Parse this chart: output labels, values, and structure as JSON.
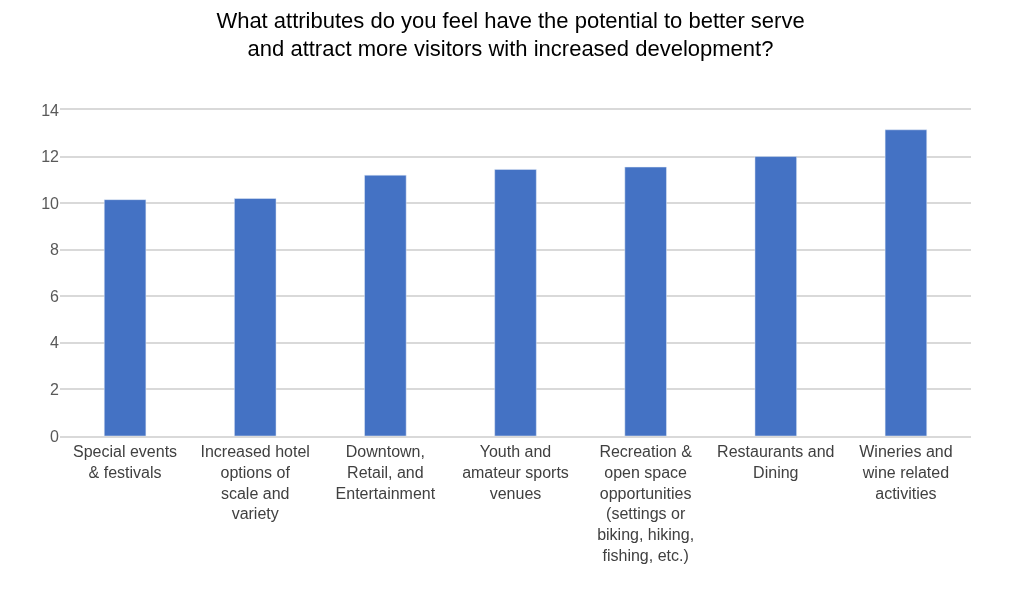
{
  "chart_data": {
    "type": "bar",
    "title": "What attributes do you feel have the potential to better serve and attract more visitors with increased development?",
    "categories": [
      "Special events & festivals",
      "Increased hotel options of scale and variety",
      "Downtown, Retail, and Entertainment",
      "Youth and amateur sports venues",
      "Recreation & open space opportunities (settings or biking, hiking, fishing, etc.)",
      "Restaurants and Dining",
      "Wineries and wine related activities"
    ],
    "values": [
      10.15,
      10.2,
      11.2,
      11.45,
      11.55,
      12.0,
      13.15
    ],
    "color": "#4472c4",
    "ylim": [
      0,
      14
    ],
    "yticks": [
      0,
      2,
      4,
      6,
      8,
      10,
      12,
      14
    ],
    "grid": "y"
  }
}
